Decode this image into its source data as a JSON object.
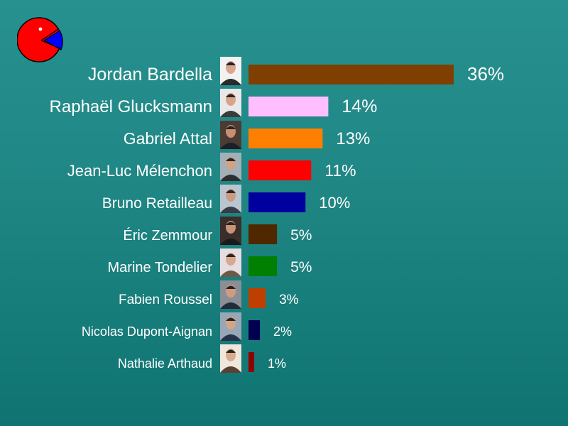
{
  "logo": {
    "icon": "pie-chart-pacman-icon",
    "colors": [
      "#ff0000",
      "#0000ff"
    ]
  },
  "chart_data": {
    "type": "bar",
    "orientation": "horizontal",
    "unit": "%",
    "xlim": [
      0,
      36
    ],
    "categories": [
      "Jordan Bardella",
      "Raphaël Glucksmann",
      "Gabriel Attal",
      "Jean-Luc Mélenchon",
      "Bruno Retailleau",
      "Éric Zemmour",
      "Marine Tondelier",
      "Fabien Roussel",
      "Nicolas Dupont-Aignan",
      "Nathalie Arthaud"
    ],
    "values": [
      36,
      14,
      13,
      11,
      10,
      5,
      5,
      3,
      2,
      1
    ],
    "value_labels": [
      "36%",
      "14%",
      "13%",
      "11%",
      "10%",
      "5%",
      "5%",
      "3%",
      "2%",
      "1%"
    ],
    "colors": [
      "#7f3f00",
      "#ffbfff",
      "#ff7f00",
      "#ff0000",
      "#00009f",
      "#502800",
      "#007f00",
      "#bf3f00",
      "#000050",
      "#8f0000"
    ]
  }
}
